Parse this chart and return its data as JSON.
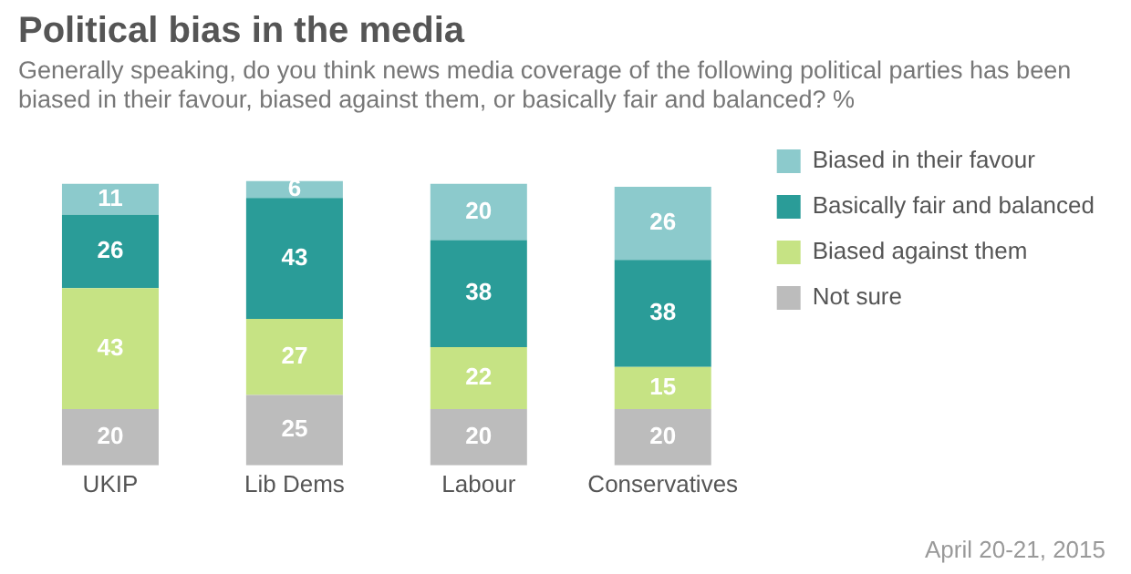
{
  "chart_data": {
    "type": "bar",
    "title": "Political bias in the media",
    "subtitle": "Generally speaking, do you think news media coverage of the following political parties has been biased in their favour, biased against them, or basically fair and balanced? %",
    "categories": [
      "UKIP",
      "Lib Dems",
      "Labour",
      "Conservatives"
    ],
    "stacked": true,
    "series": [
      {
        "name": "Not sure",
        "color": "#bcbcbc",
        "values": [
          20,
          25,
          20,
          20
        ]
      },
      {
        "name": "Biased against them",
        "color": "#c6e384",
        "values": [
          43,
          27,
          22,
          15
        ]
      },
      {
        "name": "Basically fair and balanced",
        "color": "#2a9c98",
        "values": [
          26,
          43,
          38,
          38
        ]
      },
      {
        "name": "Biased in their favour",
        "color": "#8ccacc",
        "values": [
          11,
          6,
          20,
          26
        ]
      }
    ],
    "data_labels": true,
    "legend": "right",
    "grid": false,
    "tick_labels": "x",
    "annotations": [
      "April 20-21, 2015"
    ]
  }
}
